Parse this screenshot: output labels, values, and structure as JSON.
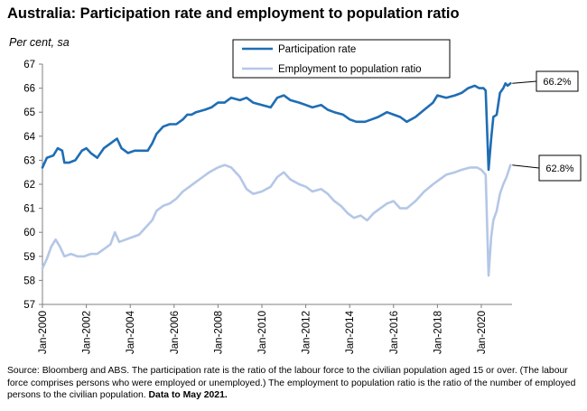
{
  "header": {
    "title": "Australia: Participation rate and employment to population ratio",
    "subtitle": "Per cent, sa"
  },
  "footer": {
    "source_text": "Source: Bloomberg and ABS.  The participation rate is the ratio of the labour force to the civilian population aged 15 or over. (The labour force comprises persons who were employed or unemployed.)  The employment to population ratio is the ratio of the number of employed persons to the civilian population.",
    "source_bold": "Data to May 2021."
  },
  "colors": {
    "participation": "#1f6db4",
    "employment": "#b4c7e7",
    "axis": "#7f7f7f"
  },
  "chart_data": {
    "type": "line",
    "title": "Australia: Participation rate and employment to population ratio",
    "ylabel": "Per cent, sa",
    "ylim": [
      57,
      67
    ],
    "yticks": [
      57,
      58,
      59,
      60,
      61,
      62,
      63,
      64,
      65,
      66,
      67
    ],
    "xlim": [
      2000.0,
      2021.4
    ],
    "xticks": [
      {
        "label": "Jan-2000",
        "x": 2000
      },
      {
        "label": "Jan-2002",
        "x": 2002
      },
      {
        "label": "Jan-2004",
        "x": 2004
      },
      {
        "label": "Jan-2006",
        "x": 2006
      },
      {
        "label": "Jan-2008",
        "x": 2008
      },
      {
        "label": "Jan-2010",
        "x": 2010
      },
      {
        "label": "Jan-2012",
        "x": 2012
      },
      {
        "label": "Jan-2014",
        "x": 2014
      },
      {
        "label": "Jan-2016",
        "x": 2016
      },
      {
        "label": "Jan-2018",
        "x": 2018
      },
      {
        "label": "Jan-2020",
        "x": 2020
      }
    ],
    "grid": false,
    "legend_position": "top-center",
    "series": [
      {
        "name": "Participation rate",
        "end_label": "66.2%",
        "points": [
          [
            2000.0,
            62.7
          ],
          [
            2000.2,
            63.1
          ],
          [
            2000.5,
            63.2
          ],
          [
            2000.7,
            63.5
          ],
          [
            2000.9,
            63.4
          ],
          [
            2001.0,
            62.9
          ],
          [
            2001.2,
            62.9
          ],
          [
            2001.5,
            63.0
          ],
          [
            2001.8,
            63.4
          ],
          [
            2002.0,
            63.5
          ],
          [
            2002.2,
            63.3
          ],
          [
            2002.5,
            63.1
          ],
          [
            2002.8,
            63.5
          ],
          [
            2003.1,
            63.7
          ],
          [
            2003.4,
            63.9
          ],
          [
            2003.6,
            63.5
          ],
          [
            2003.9,
            63.3
          ],
          [
            2004.2,
            63.4
          ],
          [
            2004.5,
            63.4
          ],
          [
            2004.8,
            63.4
          ],
          [
            2005.0,
            63.7
          ],
          [
            2005.2,
            64.1
          ],
          [
            2005.5,
            64.4
          ],
          [
            2005.8,
            64.5
          ],
          [
            2006.1,
            64.5
          ],
          [
            2006.4,
            64.7
          ],
          [
            2006.6,
            64.9
          ],
          [
            2006.8,
            64.9
          ],
          [
            2007.0,
            65.0
          ],
          [
            2007.4,
            65.1
          ],
          [
            2007.7,
            65.2
          ],
          [
            2008.0,
            65.4
          ],
          [
            2008.3,
            65.4
          ],
          [
            2008.6,
            65.6
          ],
          [
            2009.0,
            65.5
          ],
          [
            2009.3,
            65.6
          ],
          [
            2009.6,
            65.4
          ],
          [
            2010.0,
            65.3
          ],
          [
            2010.4,
            65.2
          ],
          [
            2010.7,
            65.6
          ],
          [
            2011.0,
            65.7
          ],
          [
            2011.3,
            65.5
          ],
          [
            2011.7,
            65.4
          ],
          [
            2012.0,
            65.3
          ],
          [
            2012.3,
            65.2
          ],
          [
            2012.7,
            65.3
          ],
          [
            2013.0,
            65.1
          ],
          [
            2013.3,
            65.0
          ],
          [
            2013.7,
            64.9
          ],
          [
            2014.0,
            64.7
          ],
          [
            2014.3,
            64.6
          ],
          [
            2014.7,
            64.6
          ],
          [
            2015.0,
            64.7
          ],
          [
            2015.3,
            64.8
          ],
          [
            2015.7,
            65.0
          ],
          [
            2016.0,
            64.9
          ],
          [
            2016.3,
            64.8
          ],
          [
            2016.6,
            64.6
          ],
          [
            2017.0,
            64.8
          ],
          [
            2017.4,
            65.1
          ],
          [
            2017.8,
            65.4
          ],
          [
            2018.0,
            65.7
          ],
          [
            2018.4,
            65.6
          ],
          [
            2018.8,
            65.7
          ],
          [
            2019.1,
            65.8
          ],
          [
            2019.4,
            66.0
          ],
          [
            2019.7,
            66.1
          ],
          [
            2019.9,
            66.0
          ],
          [
            2020.1,
            66.0
          ],
          [
            2020.2,
            65.9
          ],
          [
            2020.33,
            62.6
          ],
          [
            2020.45,
            63.9
          ],
          [
            2020.55,
            64.8
          ],
          [
            2020.7,
            64.9
          ],
          [
            2020.85,
            65.8
          ],
          [
            2021.0,
            66.0
          ],
          [
            2021.1,
            66.2
          ],
          [
            2021.2,
            66.1
          ],
          [
            2021.33,
            66.2
          ]
        ]
      },
      {
        "name": "Employment to population ratio",
        "end_label": "62.8%",
        "points": [
          [
            2000.0,
            58.5
          ],
          [
            2000.2,
            58.9
          ],
          [
            2000.4,
            59.4
          ],
          [
            2000.6,
            59.7
          ],
          [
            2000.8,
            59.4
          ],
          [
            2001.0,
            59.0
          ],
          [
            2001.3,
            59.1
          ],
          [
            2001.6,
            59.0
          ],
          [
            2001.9,
            59.0
          ],
          [
            2002.2,
            59.1
          ],
          [
            2002.5,
            59.1
          ],
          [
            2002.8,
            59.3
          ],
          [
            2003.1,
            59.5
          ],
          [
            2003.3,
            60.0
          ],
          [
            2003.5,
            59.6
          ],
          [
            2003.8,
            59.7
          ],
          [
            2004.1,
            59.8
          ],
          [
            2004.4,
            59.9
          ],
          [
            2004.7,
            60.2
          ],
          [
            2005.0,
            60.5
          ],
          [
            2005.2,
            60.9
          ],
          [
            2005.5,
            61.1
          ],
          [
            2005.8,
            61.2
          ],
          [
            2006.1,
            61.4
          ],
          [
            2006.4,
            61.7
          ],
          [
            2006.7,
            61.9
          ],
          [
            2007.0,
            62.1
          ],
          [
            2007.3,
            62.3
          ],
          [
            2007.6,
            62.5
          ],
          [
            2008.0,
            62.7
          ],
          [
            2008.3,
            62.8
          ],
          [
            2008.6,
            62.7
          ],
          [
            2009.0,
            62.3
          ],
          [
            2009.3,
            61.8
          ],
          [
            2009.6,
            61.6
          ],
          [
            2010.0,
            61.7
          ],
          [
            2010.4,
            61.9
          ],
          [
            2010.7,
            62.3
          ],
          [
            2011.0,
            62.5
          ],
          [
            2011.3,
            62.2
          ],
          [
            2011.7,
            62.0
          ],
          [
            2012.0,
            61.9
          ],
          [
            2012.3,
            61.7
          ],
          [
            2012.7,
            61.8
          ],
          [
            2013.0,
            61.6
          ],
          [
            2013.3,
            61.3
          ],
          [
            2013.6,
            61.1
          ],
          [
            2013.9,
            60.8
          ],
          [
            2014.2,
            60.6
          ],
          [
            2014.5,
            60.7
          ],
          [
            2014.8,
            60.5
          ],
          [
            2015.1,
            60.8
          ],
          [
            2015.4,
            61.0
          ],
          [
            2015.7,
            61.2
          ],
          [
            2016.0,
            61.3
          ],
          [
            2016.3,
            61.0
          ],
          [
            2016.6,
            61.0
          ],
          [
            2017.0,
            61.3
          ],
          [
            2017.4,
            61.7
          ],
          [
            2017.8,
            62.0
          ],
          [
            2018.1,
            62.2
          ],
          [
            2018.4,
            62.4
          ],
          [
            2018.8,
            62.5
          ],
          [
            2019.1,
            62.6
          ],
          [
            2019.5,
            62.7
          ],
          [
            2019.8,
            62.7
          ],
          [
            2020.0,
            62.6
          ],
          [
            2020.2,
            62.4
          ],
          [
            2020.33,
            58.2
          ],
          [
            2020.45,
            59.8
          ],
          [
            2020.55,
            60.5
          ],
          [
            2020.7,
            60.9
          ],
          [
            2020.85,
            61.6
          ],
          [
            2021.0,
            62.0
          ],
          [
            2021.15,
            62.3
          ],
          [
            2021.33,
            62.8
          ]
        ]
      }
    ]
  }
}
